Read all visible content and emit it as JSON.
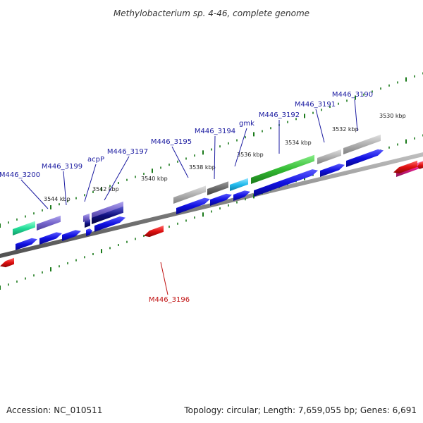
{
  "title": "Methylobacterium sp. 4-46, complete genome",
  "footer": {
    "accession": "Accession: NC_010511",
    "summary": "Topology: circular; Length: 7,659,055 bp; Genes: 6,691"
  },
  "colors": {
    "backbone": "#808080",
    "tick": "#1a7a1a",
    "label_forward": "#1a1aa0",
    "label_reverse": "#c01010"
  },
  "scale_labels": [
    "3530 kbp",
    "3532 kbp",
    "3534 kbp",
    "3536 kbp",
    "3538 kbp",
    "3540 kbp",
    "3542 kbp",
    "3544 kbp"
  ],
  "gene_labels": [
    {
      "name": "M446_3190",
      "strand": "forward"
    },
    {
      "name": "M446_3191",
      "strand": "forward"
    },
    {
      "name": "M446_3192",
      "strand": "forward"
    },
    {
      "name": "gmk",
      "strand": "forward"
    },
    {
      "name": "M446_3194",
      "strand": "forward"
    },
    {
      "name": "M446_3195",
      "strand": "forward"
    },
    {
      "name": "M446_3197",
      "strand": "forward"
    },
    {
      "name": "acpP",
      "strand": "forward"
    },
    {
      "name": "M446_3199",
      "strand": "forward"
    },
    {
      "name": "M446_3200",
      "strand": "forward"
    },
    {
      "name": "M446_3196",
      "strand": "reverse"
    }
  ],
  "feature_colors": {
    "cds": "#1010e0",
    "cds_reverse": "#e01010",
    "gray": "#b0b0b0",
    "dark_gray": "#707070",
    "green": "#33bb33",
    "cyan": "#22bbee",
    "teal": "#22dd99",
    "purple": "#7766cc",
    "navy": "#101080",
    "magenta": "#e0208a"
  }
}
